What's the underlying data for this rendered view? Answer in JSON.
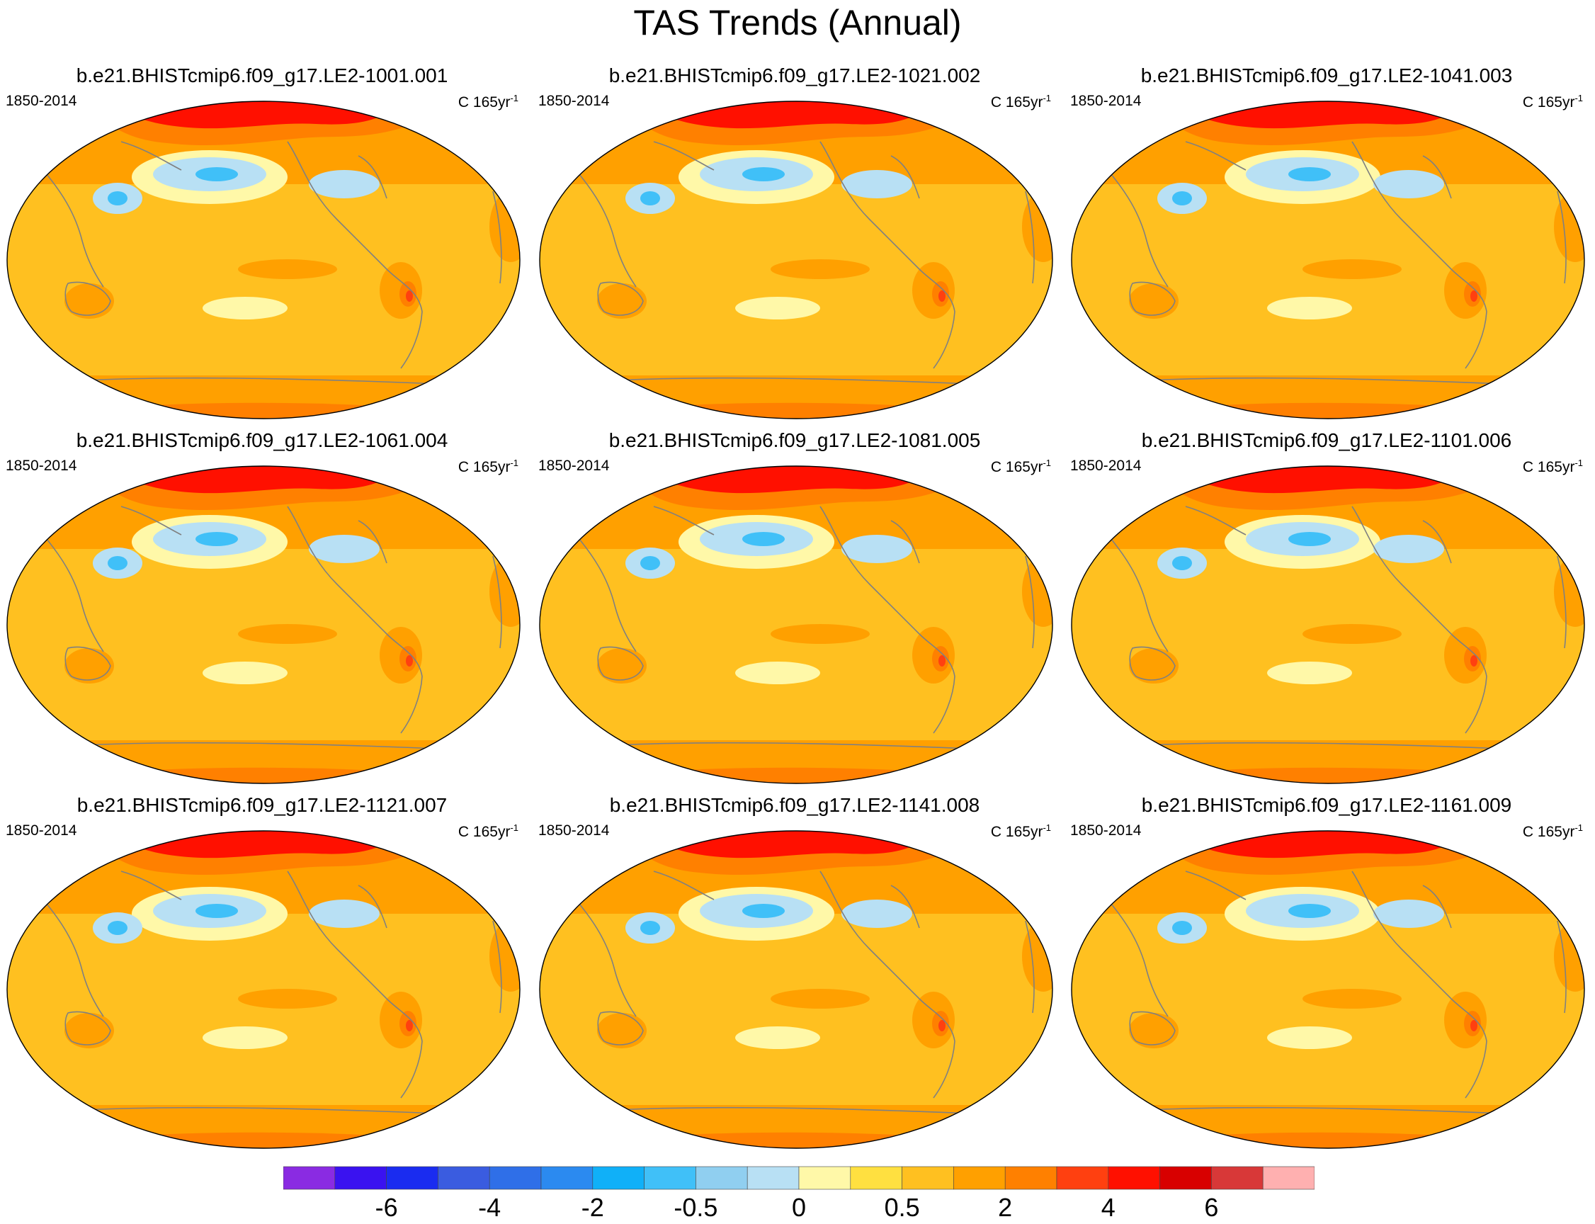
{
  "title": "TAS Trends (Annual)",
  "panels": [
    {
      "title": "b.e21.BHISTcmip6.f09_g17.LE2-1001.001",
      "period": "1850-2014",
      "units_base": "C 165yr",
      "units_exp": "-1"
    },
    {
      "title": "b.e21.BHISTcmip6.f09_g17.LE2-1021.002",
      "period": "1850-2014",
      "units_base": "C 165yr",
      "units_exp": "-1"
    },
    {
      "title": "b.e21.BHISTcmip6.f09_g17.LE2-1041.003",
      "period": "1850-2014",
      "units_base": "C 165yr",
      "units_exp": "-1"
    },
    {
      "title": "b.e21.BHISTcmip6.f09_g17.LE2-1061.004",
      "period": "1850-2014",
      "units_base": "C 165yr",
      "units_exp": "-1"
    },
    {
      "title": "b.e21.BHISTcmip6.f09_g17.LE2-1081.005",
      "period": "1850-2014",
      "units_base": "C 165yr",
      "units_exp": "-1"
    },
    {
      "title": "b.e21.BHISTcmip6.f09_g17.LE2-1101.006",
      "period": "1850-2014",
      "units_base": "C 165yr",
      "units_exp": "-1"
    },
    {
      "title": "b.e21.BHISTcmip6.f09_g17.LE2-1121.007",
      "period": "1850-2014",
      "units_base": "C 165yr",
      "units_exp": "-1"
    },
    {
      "title": "b.e21.BHISTcmip6.f09_g17.LE2-1141.008",
      "period": "1850-2014",
      "units_base": "C 165yr",
      "units_exp": "-1"
    },
    {
      "title": "b.e21.BHISTcmip6.f09_g17.LE2-1161.009",
      "period": "1850-2014",
      "units_base": "C 165yr",
      "units_exp": "-1"
    }
  ],
  "colorbar": {
    "colors": [
      "#8a2be2",
      "#3a12f0",
      "#1a2cf0",
      "#3a5ce0",
      "#2f6fe8",
      "#2b8af0",
      "#10b0f8",
      "#40c0f8",
      "#90cff0",
      "#b8e0f4",
      "#fff8a8",
      "#ffe040",
      "#ffc020",
      "#ffa000",
      "#ff8000",
      "#ff4010",
      "#ff1000",
      "#d80000",
      "#d83838",
      "#ffb0b0"
    ],
    "labels": [
      "-6",
      "-4",
      "-2",
      "-0.5",
      "0",
      "0.5",
      "2",
      "4",
      "6"
    ]
  },
  "map_colors": {
    "base": "#ffc020",
    "warm": "#ffa000",
    "warmer": "#ff8000",
    "hot": "#ff4010",
    "hottest": "#ff1000",
    "neutral": "#fff8a8",
    "cool": "#b8e0f4",
    "cold": "#40c0f8",
    "coast": "#808080"
  }
}
